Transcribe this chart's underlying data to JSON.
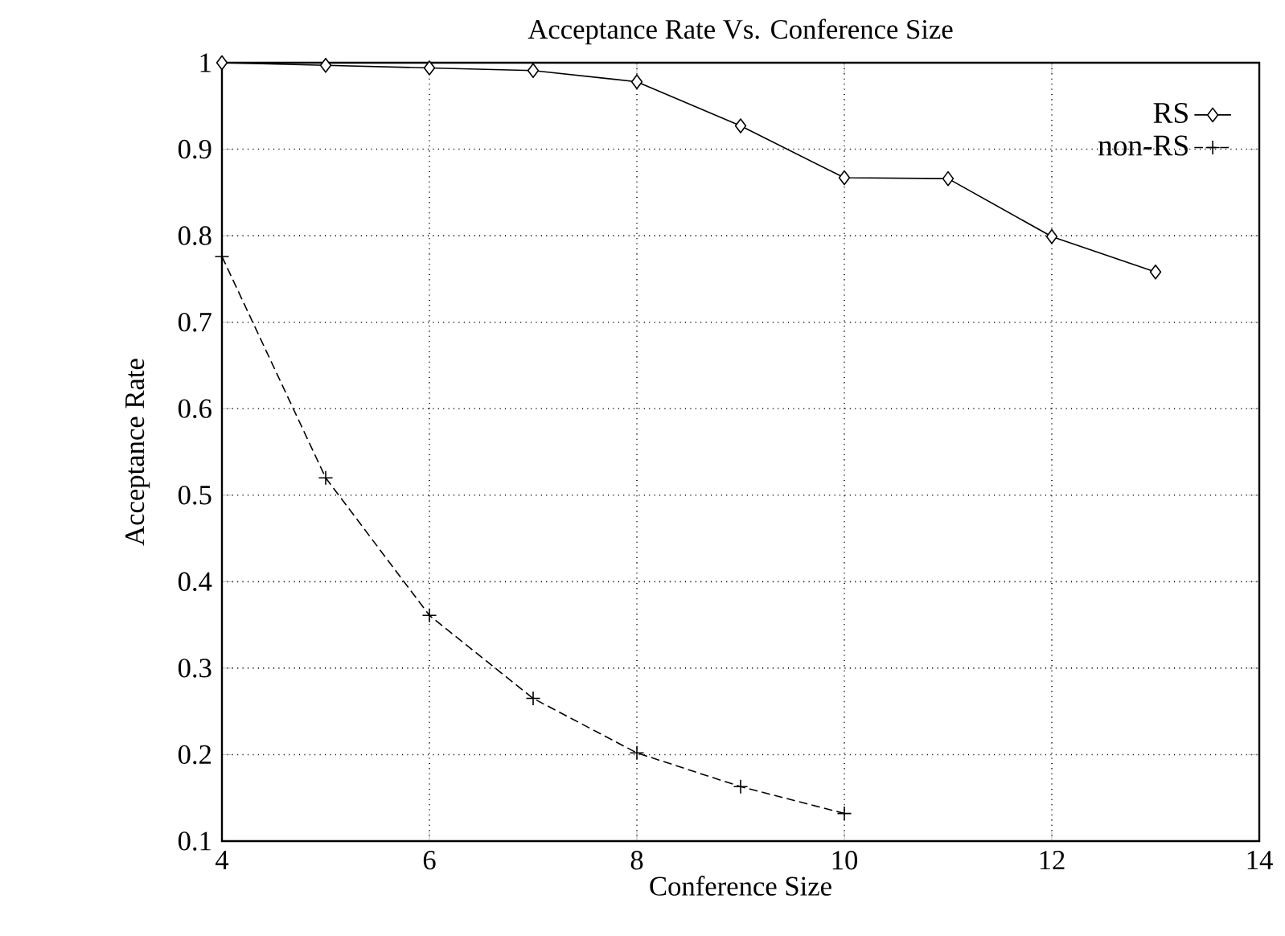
{
  "chart_data": {
    "type": "line",
    "title": "Acceptance Rate Vs. Conference Size",
    "xlabel": "Conference Size",
    "ylabel": "Acceptance Rate",
    "xlim": [
      4,
      14
    ],
    "xticks": [
      4,
      6,
      8,
      10,
      12,
      14
    ],
    "ylim": [
      0.1,
      1
    ],
    "yticks": [
      0.1,
      0.2,
      0.3,
      0.4,
      0.5,
      0.6,
      0.7,
      0.8,
      0.9,
      1
    ],
    "grid": true,
    "legend": "top right",
    "series": [
      {
        "name": "RS",
        "color": "#000000",
        "marker": "diamond",
        "line_style": "solid",
        "x": [
          4,
          5,
          6,
          7,
          8,
          9,
          10,
          11,
          12,
          13
        ],
        "values": [
          1.0,
          0.997,
          0.994,
          0.991,
          0.978,
          0.927,
          0.867,
          0.866,
          0.799,
          0.758
        ]
      },
      {
        "name": "non-RS",
        "color": "#000000",
        "marker": "cross",
        "line_style": "dashed",
        "x": [
          4,
          5,
          6,
          7,
          8,
          9,
          10
        ],
        "values": [
          0.776,
          0.52,
          0.361,
          0.265,
          0.202,
          0.163,
          0.132
        ]
      }
    ]
  }
}
